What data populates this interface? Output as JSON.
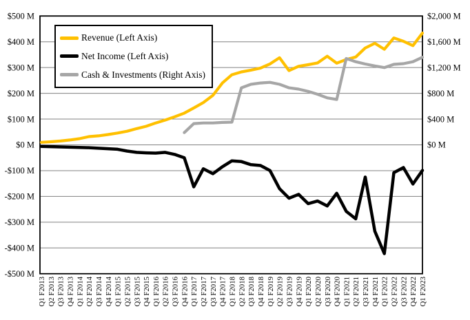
{
  "chart_data": {
    "type": "line",
    "title": "",
    "x_labels": [
      "Q1 F2013",
      "Q2 F2013",
      "Q3 F2013",
      "Q4 F2013",
      "Q1 F2014",
      "Q2 F2014",
      "Q3 F2014",
      "Q4 F2014",
      "Q1 F2015",
      "Q2 F2015",
      "Q3 F2015",
      "Q4 F2015",
      "Q1 F2016",
      "Q2 F2016",
      "Q3 F2016",
      "Q4 F2016",
      "Q1 F2017",
      "Q2 F2017",
      "Q3 F2017",
      "Q4 F2017",
      "Q1 F2018",
      "Q2 F2018",
      "Q3 F2018",
      "Q4 F2018",
      "Q1 F2019",
      "Q2 F2019",
      "Q3 F2019",
      "Q4 F2019",
      "Q1 F2020",
      "Q2 F2020",
      "Q3 F2020",
      "Q4 F2020",
      "Q1 F2021",
      "Q2 F2021",
      "Q3 F2021",
      "Q4 F2021",
      "Q1 F2022",
      "Q2 F2022",
      "Q3 F2022",
      "Q4 F2022",
      "Q1 F2023"
    ],
    "series": [
      {
        "name": "Revenue (Left Axis)",
        "axis": "left",
        "color": "#FFC000",
        "width": 4.2,
        "values": [
          10,
          12,
          15,
          19,
          24,
          32,
          35,
          40,
          46,
          53,
          63,
          72,
          85,
          96,
          109,
          123,
          143,
          164,
          192,
          240,
          272,
          283,
          290,
          298,
          314,
          338,
          288,
          305,
          311,
          318,
          344,
          317,
          331,
          341,
          376,
          394,
          371,
          415,
          402,
          385,
          434
        ]
      },
      {
        "name": "Net Income (Left Axis)",
        "axis": "left",
        "color": "#000000",
        "width": 4.5,
        "values": [
          -6,
          -7,
          -8,
          -9,
          -10,
          -11,
          -13,
          -15,
          -17,
          -24,
          -29,
          -31,
          -32,
          -29,
          -37,
          -50,
          -163,
          -93,
          -112,
          -85,
          -62,
          -65,
          -77,
          -80,
          -100,
          -170,
          -207,
          -192,
          -228,
          -218,
          -237,
          -188,
          -258,
          -287,
          -125,
          -335,
          -422,
          -108,
          -88,
          -152,
          -99
        ]
      },
      {
        "name": "Cash & Investments (Right Axis)",
        "axis": "right",
        "color": "#A6A6A6",
        "width": 4.2,
        "values": [
          null,
          null,
          null,
          null,
          null,
          null,
          null,
          null,
          null,
          null,
          null,
          null,
          null,
          null,
          null,
          190,
          330,
          340,
          340,
          348,
          352,
          885,
          940,
          960,
          970,
          940,
          885,
          865,
          830,
          785,
          730,
          705,
          1340,
          1290,
          1255,
          1225,
          1200,
          1250,
          1260,
          1290,
          1360
        ]
      }
    ],
    "left_axis": {
      "ticks": [
        {
          "label": "$500 M",
          "value": 500
        },
        {
          "label": "$400 M",
          "value": 400
        },
        {
          "label": "$300 M",
          "value": 300
        },
        {
          "label": "$200 M",
          "value": 200
        },
        {
          "label": "$100 M",
          "value": 100
        },
        {
          "label": "$0 M",
          "value": 0
        },
        {
          "label": "-$100 M",
          "value": -100
        },
        {
          "label": "-$200 M",
          "value": -200
        },
        {
          "label": "-$300 M",
          "value": -300
        },
        {
          "label": "-$400 M",
          "value": -400
        },
        {
          "label": "-$500 M",
          "value": -500
        }
      ],
      "range": [
        -500,
        500
      ]
    },
    "right_axis": {
      "ticks": [
        {
          "label": "$2,000 M",
          "value": 2000
        },
        {
          "label": "$1,600 M",
          "value": 1600
        },
        {
          "label": "$1,200 M",
          "value": 1200
        },
        {
          "label": "$800 M",
          "value": 800
        },
        {
          "label": "$400 M",
          "value": 400
        },
        {
          "label": "$0 M",
          "value": 0
        }
      ],
      "range": [
        -2000,
        2000
      ]
    },
    "grid": true,
    "legend_position": "top-left"
  },
  "legend": [
    {
      "label": "Revenue (Left Axis)"
    },
    {
      "label": "Net Income (Left Axis)"
    },
    {
      "label": "Cash & Investments (Right Axis)"
    }
  ],
  "colors": {
    "grid": "#808080",
    "frame": "#000000",
    "text": "#000000",
    "background": "#FFFFFF"
  }
}
